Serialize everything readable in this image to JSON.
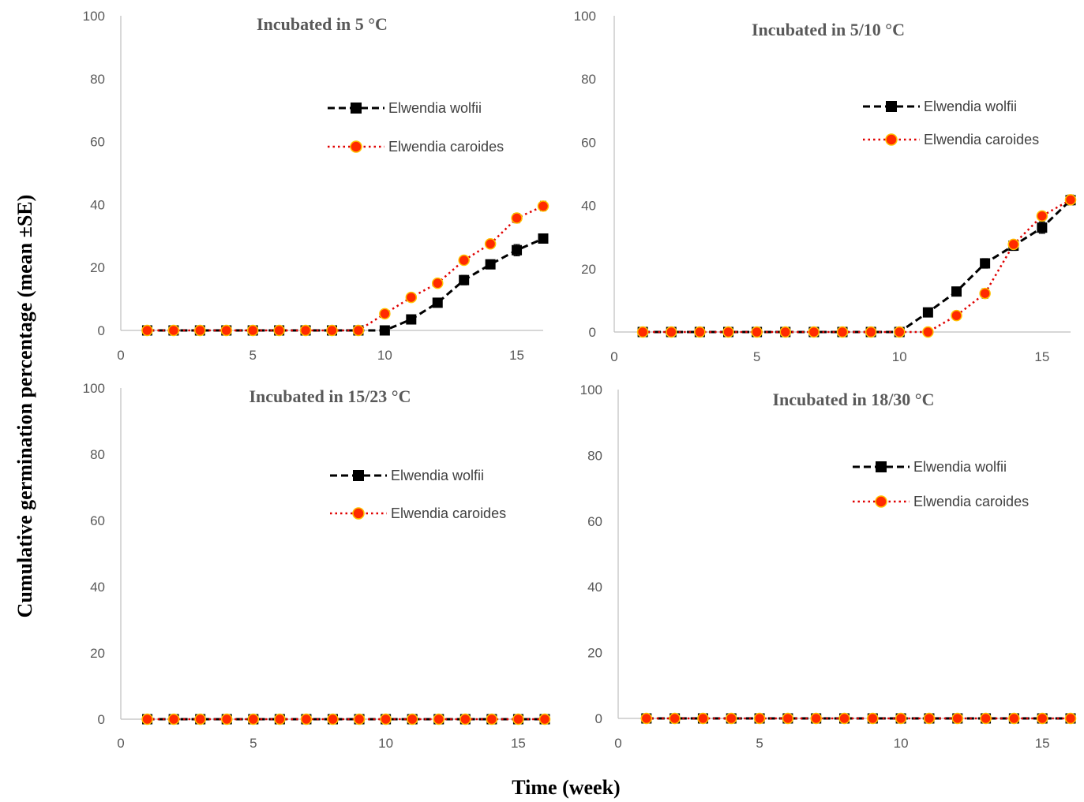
{
  "figure": {
    "ylabel": "Cumulative germination percentage (mean ±SE)",
    "xlabel": "Time (week)"
  },
  "colors": {
    "wolfii": "#000000",
    "caroides_line": "#e00000",
    "caroides_fill": "#ff2a00",
    "caroides_marker_ring": "#ffc000",
    "axis": "#bfbfbf",
    "tick_text": "#595959"
  },
  "chart_data": [
    {
      "type": "line",
      "title": "Incubated in 5 °C",
      "xlim": [
        0,
        16
      ],
      "ylim": [
        0,
        100
      ],
      "xticks": [
        0,
        5,
        10,
        15
      ],
      "yticks": [
        0,
        20,
        40,
        60,
        80,
        100
      ],
      "x": [
        1,
        2,
        3,
        4,
        5,
        6,
        7,
        8,
        9,
        10,
        11,
        12,
        13,
        14,
        15,
        16
      ],
      "legend_position": "right",
      "series": [
        {
          "name": "Elwendia wolfii",
          "style": "dashed",
          "marker": "square",
          "values": [
            0,
            0,
            0,
            0,
            0,
            0,
            0,
            0,
            0,
            0,
            3.5,
            8.8,
            16,
            21,
            25.5,
            29.2
          ],
          "errors": [
            0,
            0,
            0,
            0,
            0,
            0,
            0,
            0,
            0,
            0,
            0.8,
            1,
            1.5,
            1,
            1.8,
            1
          ]
        },
        {
          "name": "Elwendia caroides",
          "style": "dotted",
          "marker": "circle",
          "values": [
            0,
            0,
            0,
            0,
            0,
            0,
            0,
            0,
            0,
            5.3,
            10.5,
            15,
            22.3,
            27.5,
            35.7,
            39.5
          ],
          "errors": [
            0,
            0,
            0,
            0,
            0,
            0,
            0,
            0,
            0,
            0.8,
            0.8,
            1,
            1,
            1,
            1.5,
            1.5
          ]
        }
      ]
    },
    {
      "type": "line",
      "title": "Incubated in 5/10 °C",
      "xlim": [
        0,
        16
      ],
      "ylim": [
        0,
        100
      ],
      "xticks": [
        0,
        5,
        10,
        15
      ],
      "yticks": [
        0,
        20,
        40,
        60,
        80,
        100
      ],
      "x": [
        1,
        2,
        3,
        4,
        5,
        6,
        7,
        8,
        9,
        10,
        11,
        12,
        13,
        14,
        15,
        16
      ],
      "legend_position": "right",
      "series": [
        {
          "name": "Elwendia wolfii",
          "style": "dashed",
          "marker": "square",
          "values": [
            0,
            0,
            0,
            0,
            0,
            0,
            0,
            0,
            0,
            0,
            6.2,
            12.8,
            21.7,
            27.3,
            33,
            41.7
          ],
          "errors": [
            0,
            0,
            0,
            0,
            0,
            0,
            0,
            0,
            0,
            0,
            0.8,
            1,
            1.5,
            1.5,
            1.8,
            1.5
          ]
        },
        {
          "name": "Elwendia caroides",
          "style": "dotted",
          "marker": "circle",
          "values": [
            0,
            0,
            0,
            0,
            0,
            0,
            0,
            0,
            0,
            0,
            0,
            5.2,
            12.2,
            27.7,
            36.7,
            41.8
          ],
          "errors": [
            0,
            0,
            0,
            0,
            0,
            0,
            0,
            0,
            0,
            0,
            0,
            0.8,
            1.5,
            1,
            1,
            1.5
          ]
        }
      ]
    },
    {
      "type": "line",
      "title": "Incubated in 15/23 °C",
      "xlim": [
        0,
        16
      ],
      "ylim": [
        0,
        100
      ],
      "xticks": [
        0,
        5,
        10,
        15
      ],
      "yticks": [
        0,
        20,
        40,
        60,
        80,
        100
      ],
      "x": [
        1,
        2,
        3,
        4,
        5,
        6,
        7,
        8,
        9,
        10,
        11,
        12,
        13,
        14,
        15,
        16
      ],
      "legend_position": "right",
      "series": [
        {
          "name": "Elwendia wolfii",
          "style": "dashed",
          "marker": "square",
          "values": [
            0,
            0,
            0,
            0,
            0,
            0,
            0,
            0,
            0,
            0,
            0,
            0,
            0,
            0,
            0,
            0
          ],
          "errors": [
            0,
            0,
            0,
            0,
            0,
            0,
            0,
            0,
            0,
            0,
            0,
            0,
            0,
            0,
            0,
            0
          ]
        },
        {
          "name": "Elwendia caroides",
          "style": "dotted",
          "marker": "circle",
          "values": [
            0,
            0,
            0,
            0,
            0,
            0,
            0,
            0,
            0,
            0,
            0,
            0,
            0,
            0,
            0,
            0
          ],
          "errors": [
            0,
            0,
            0,
            0,
            0,
            0,
            0,
            0,
            0,
            0,
            0,
            0,
            0,
            0,
            0,
            0
          ]
        }
      ]
    },
    {
      "type": "line",
      "title": "Incubated in 18/30 °C",
      "xlim": [
        0,
        16
      ],
      "ylim": [
        0,
        100
      ],
      "xticks": [
        0,
        5,
        10,
        15
      ],
      "yticks": [
        0,
        20,
        40,
        60,
        80,
        100
      ],
      "x": [
        1,
        2,
        3,
        4,
        5,
        6,
        7,
        8,
        9,
        10,
        11,
        12,
        13,
        14,
        15,
        16
      ],
      "legend_position": "right",
      "series": [
        {
          "name": "Elwendia wolfii",
          "style": "dashed",
          "marker": "square",
          "values": [
            0,
            0,
            0,
            0,
            0,
            0,
            0,
            0,
            0,
            0,
            0,
            0,
            0,
            0,
            0,
            0
          ],
          "errors": [
            0,
            0,
            0,
            0,
            0,
            0,
            0,
            0,
            0,
            0,
            0,
            0,
            0,
            0,
            0,
            0
          ]
        },
        {
          "name": "Elwendia caroides",
          "style": "dotted",
          "marker": "circle",
          "values": [
            0,
            0,
            0,
            0,
            0,
            0,
            0,
            0,
            0,
            0,
            0,
            0,
            0,
            0,
            0,
            0
          ],
          "errors": [
            0,
            0,
            0,
            0,
            0,
            0,
            0,
            0,
            0,
            0,
            0,
            0,
            0,
            0,
            0,
            0
          ]
        }
      ]
    }
  ]
}
